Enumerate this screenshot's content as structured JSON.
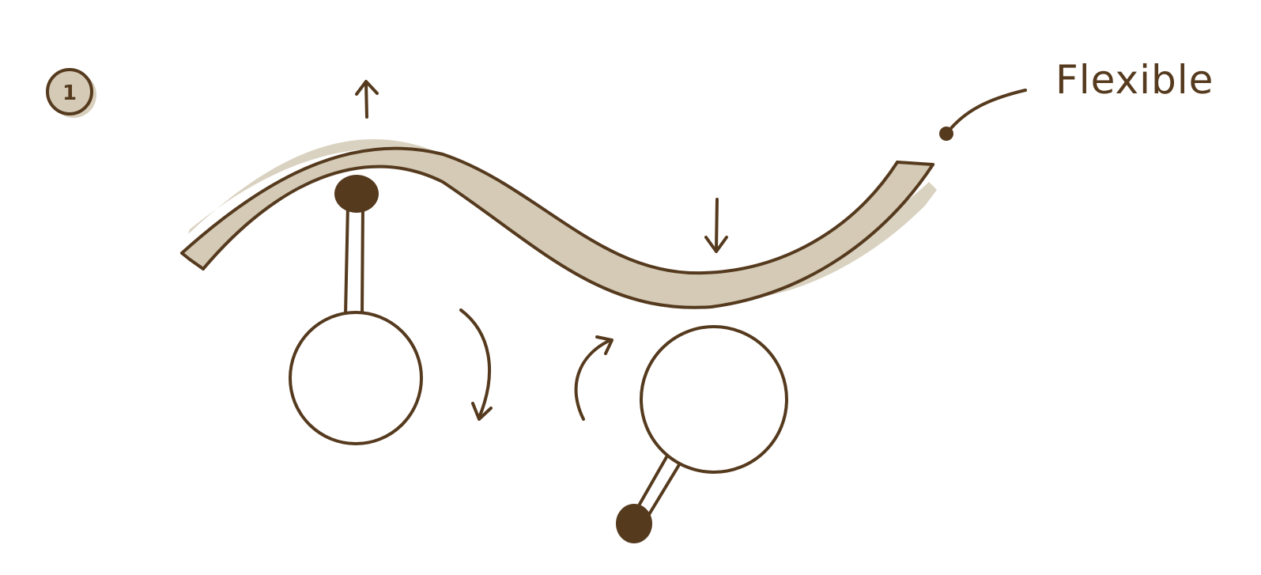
{
  "step_badge": {
    "label": "1"
  },
  "callout": {
    "label": "Flexible"
  },
  "colors": {
    "ink": "#553a1e",
    "band_fill": "#d4cab6",
    "badge_fill": "#d4cab6",
    "background": "#ffffff"
  },
  "icons": {
    "up_arrow": "arrow-up-icon",
    "down_arrow": "arrow-down-icon",
    "left_rotation": "clockwise-arrow-icon",
    "right_rotation": "counterclockwise-arrow-icon"
  }
}
